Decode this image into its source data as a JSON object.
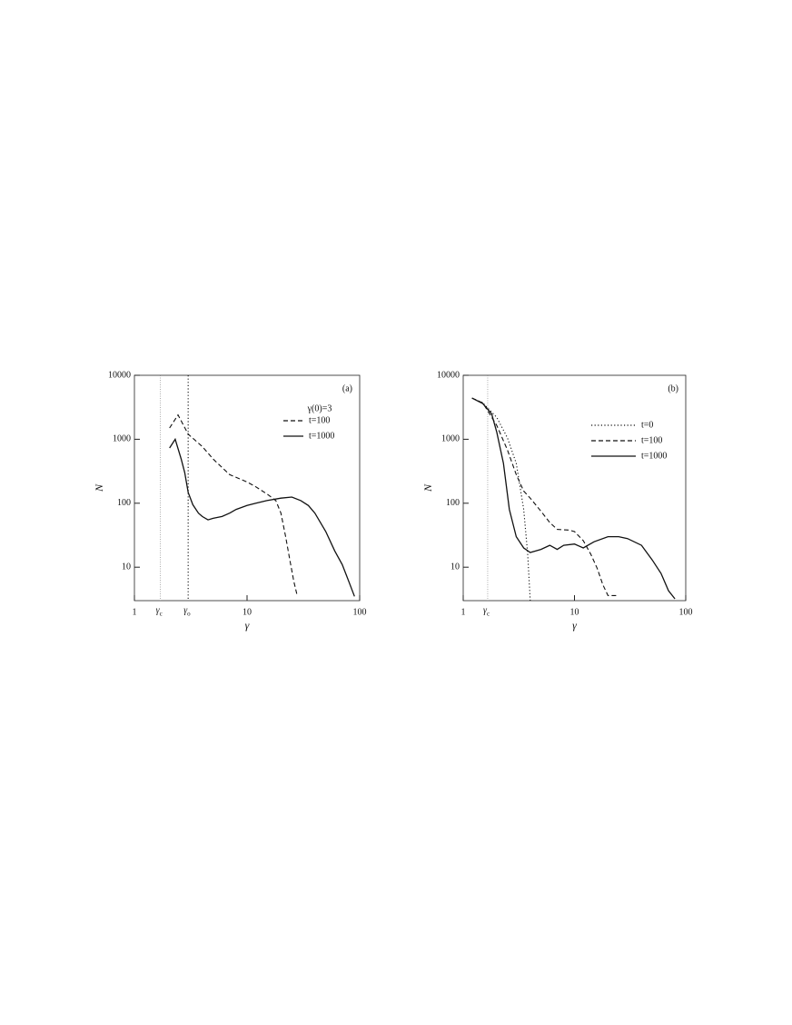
{
  "chart_data": [
    {
      "type": "line",
      "panel_label": "(a)",
      "xlabel": "γ",
      "ylabel": "N",
      "log_x": true,
      "log_y": true,
      "xlim": [
        1,
        100
      ],
      "ylim": [
        3,
        10000
      ],
      "xticks": [
        1,
        10,
        100
      ],
      "yticks": [
        10,
        100,
        1000,
        10000
      ],
      "legend_title": "γ(0)=3",
      "markers": [
        {
          "x": 1.7,
          "symbol": "γ",
          "subscript": "c",
          "style": "faint"
        },
        {
          "x": 3,
          "symbol": "γ",
          "subscript": "o",
          "style": "dotted"
        }
      ],
      "series": [
        {
          "name": "t=100",
          "color": "#111111",
          "dash": "dashed",
          "x": [
            2.05,
            2.44,
            3,
            4,
            5,
            7,
            10,
            12,
            15,
            18,
            20,
            22,
            24,
            26,
            28
          ],
          "values": [
            1500,
            2400,
            1200,
            770,
            490,
            280,
            215,
            180,
            140,
            110,
            70,
            30,
            13,
            6,
            3.5
          ]
        },
        {
          "name": "t=1000",
          "color": "#111111",
          "dash": "solid",
          "x": [
            2.05,
            2.3,
            2.6,
            2.8,
            3,
            3.3,
            3.7,
            4,
            4.5,
            5,
            6,
            7,
            8,
            10,
            12,
            15,
            20,
            25,
            30,
            35,
            40,
            50,
            60,
            70,
            80,
            90
          ],
          "values": [
            730,
            1000,
            490,
            300,
            147,
            95,
            70,
            62,
            55,
            58,
            62,
            70,
            80,
            92,
            100,
            110,
            120,
            125,
            110,
            92,
            70,
            36,
            18,
            11,
            6,
            3.5
          ]
        }
      ]
    },
    {
      "type": "line",
      "panel_label": "(b)",
      "xlabel": "γ",
      "ylabel": "N",
      "log_x": true,
      "log_y": true,
      "xlim": [
        1,
        100
      ],
      "ylim": [
        3,
        10000
      ],
      "xticks": [
        1,
        10,
        100
      ],
      "yticks": [
        10,
        100,
        1000,
        10000
      ],
      "markers": [
        {
          "x": 1.66,
          "symbol": "γ",
          "subscript": "c",
          "style": "faint"
        }
      ],
      "series": [
        {
          "name": "t=0",
          "color": "#111111",
          "dash": "dotted",
          "x": [
            1.2,
            1.5,
            2,
            2.5,
            3,
            3.5,
            3.8,
            4
          ],
          "values": [
            4400,
            3700,
            2200,
            1050,
            420,
            80,
            16,
            3
          ]
        },
        {
          "name": "t=100",
          "color": "#111111",
          "dash": "dashed",
          "x": [
            1.2,
            1.5,
            2,
            2.5,
            3,
            3.5,
            4,
            5,
            6,
            7,
            9,
            10,
            12,
            14,
            16,
            18,
            20,
            25
          ],
          "values": [
            4400,
            3700,
            1650,
            680,
            280,
            155,
            120,
            75,
            50,
            39,
            38,
            36,
            26,
            16,
            9.6,
            5.3,
            3.6,
            3.6
          ]
        },
        {
          "name": "t=1000",
          "color": "#111111",
          "dash": "solid",
          "x": [
            1.2,
            1.5,
            1.8,
            2,
            2.3,
            2.6,
            3,
            3.5,
            4,
            4.5,
            5,
            6,
            7,
            8,
            10,
            12,
            15,
            20,
            25,
            30,
            40,
            50,
            60,
            70,
            80
          ],
          "values": [
            4400,
            3600,
            2500,
            1300,
            420,
            80,
            30,
            20,
            17,
            18,
            19,
            22,
            19,
            22,
            23,
            20,
            25,
            30,
            30,
            28,
            22,
            13,
            8,
            4.3,
            3.2
          ]
        }
      ]
    }
  ]
}
